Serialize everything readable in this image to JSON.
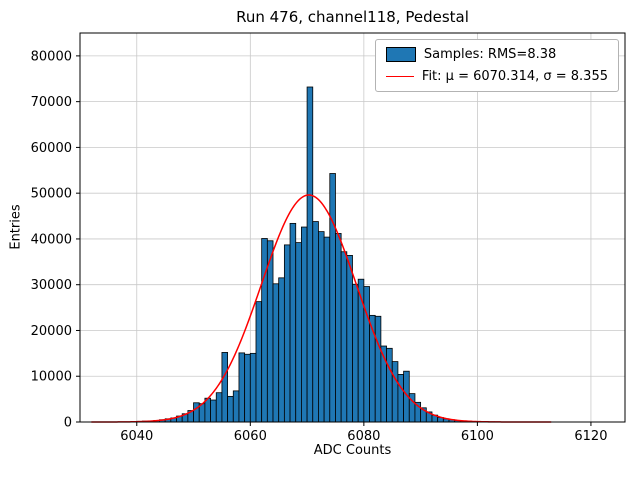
{
  "chart_data": {
    "type": "bar",
    "subtype": "histogram-with-gaussian-fit",
    "title": "Run 476, channel118, Pedestal",
    "xlabel": "ADC Counts",
    "ylabel": "Entries",
    "xlim": [
      6030,
      6126
    ],
    "ylim": [
      0,
      85000
    ],
    "x_ticks": [
      6040,
      6060,
      6080,
      6100,
      6120
    ],
    "y_ticks": [
      0,
      10000,
      20000,
      30000,
      40000,
      50000,
      60000,
      70000,
      80000
    ],
    "grid": true,
    "legend_position": "upper right",
    "bar_color": "#1f77b4",
    "bar_edge_color": "#000000",
    "fit_color": "#ff0000",
    "bin_start": 6040,
    "bin_width": 1,
    "values": [
      150,
      200,
      250,
      350,
      500,
      700,
      900,
      1300,
      1800,
      2500,
      4200,
      4000,
      5200,
      4800,
      6400,
      15200,
      5600,
      6800,
      15100,
      14800,
      15000,
      26300,
      40100,
      39600,
      30200,
      31500,
      38700,
      43400,
      39200,
      42600,
      73200,
      43800,
      41600,
      40400,
      54300,
      41200,
      37200,
      36400,
      30100,
      31200,
      29600,
      23300,
      23100,
      16600,
      16100,
      13200,
      10400,
      11100,
      6200,
      4300,
      3100,
      2200,
      1500,
      1000,
      700,
      500,
      350,
      250,
      180,
      120,
      80,
      60,
      40,
      30,
      20,
      15,
      10,
      8,
      6,
      5,
      4,
      3,
      2,
      2
    ],
    "fit": {
      "mu": 6070.314,
      "sigma": 8.355,
      "amplitude": 49600,
      "x_start": 6032,
      "x_end": 6113
    },
    "legend": [
      {
        "label": "Samples: RMS=8.38"
      },
      {
        "label": "Fit: μ = 6070.314, σ = 8.355"
      }
    ],
    "stats": {
      "rms": 8.38,
      "fit_mu": 6070.314,
      "fit_sigma": 8.355
    }
  }
}
